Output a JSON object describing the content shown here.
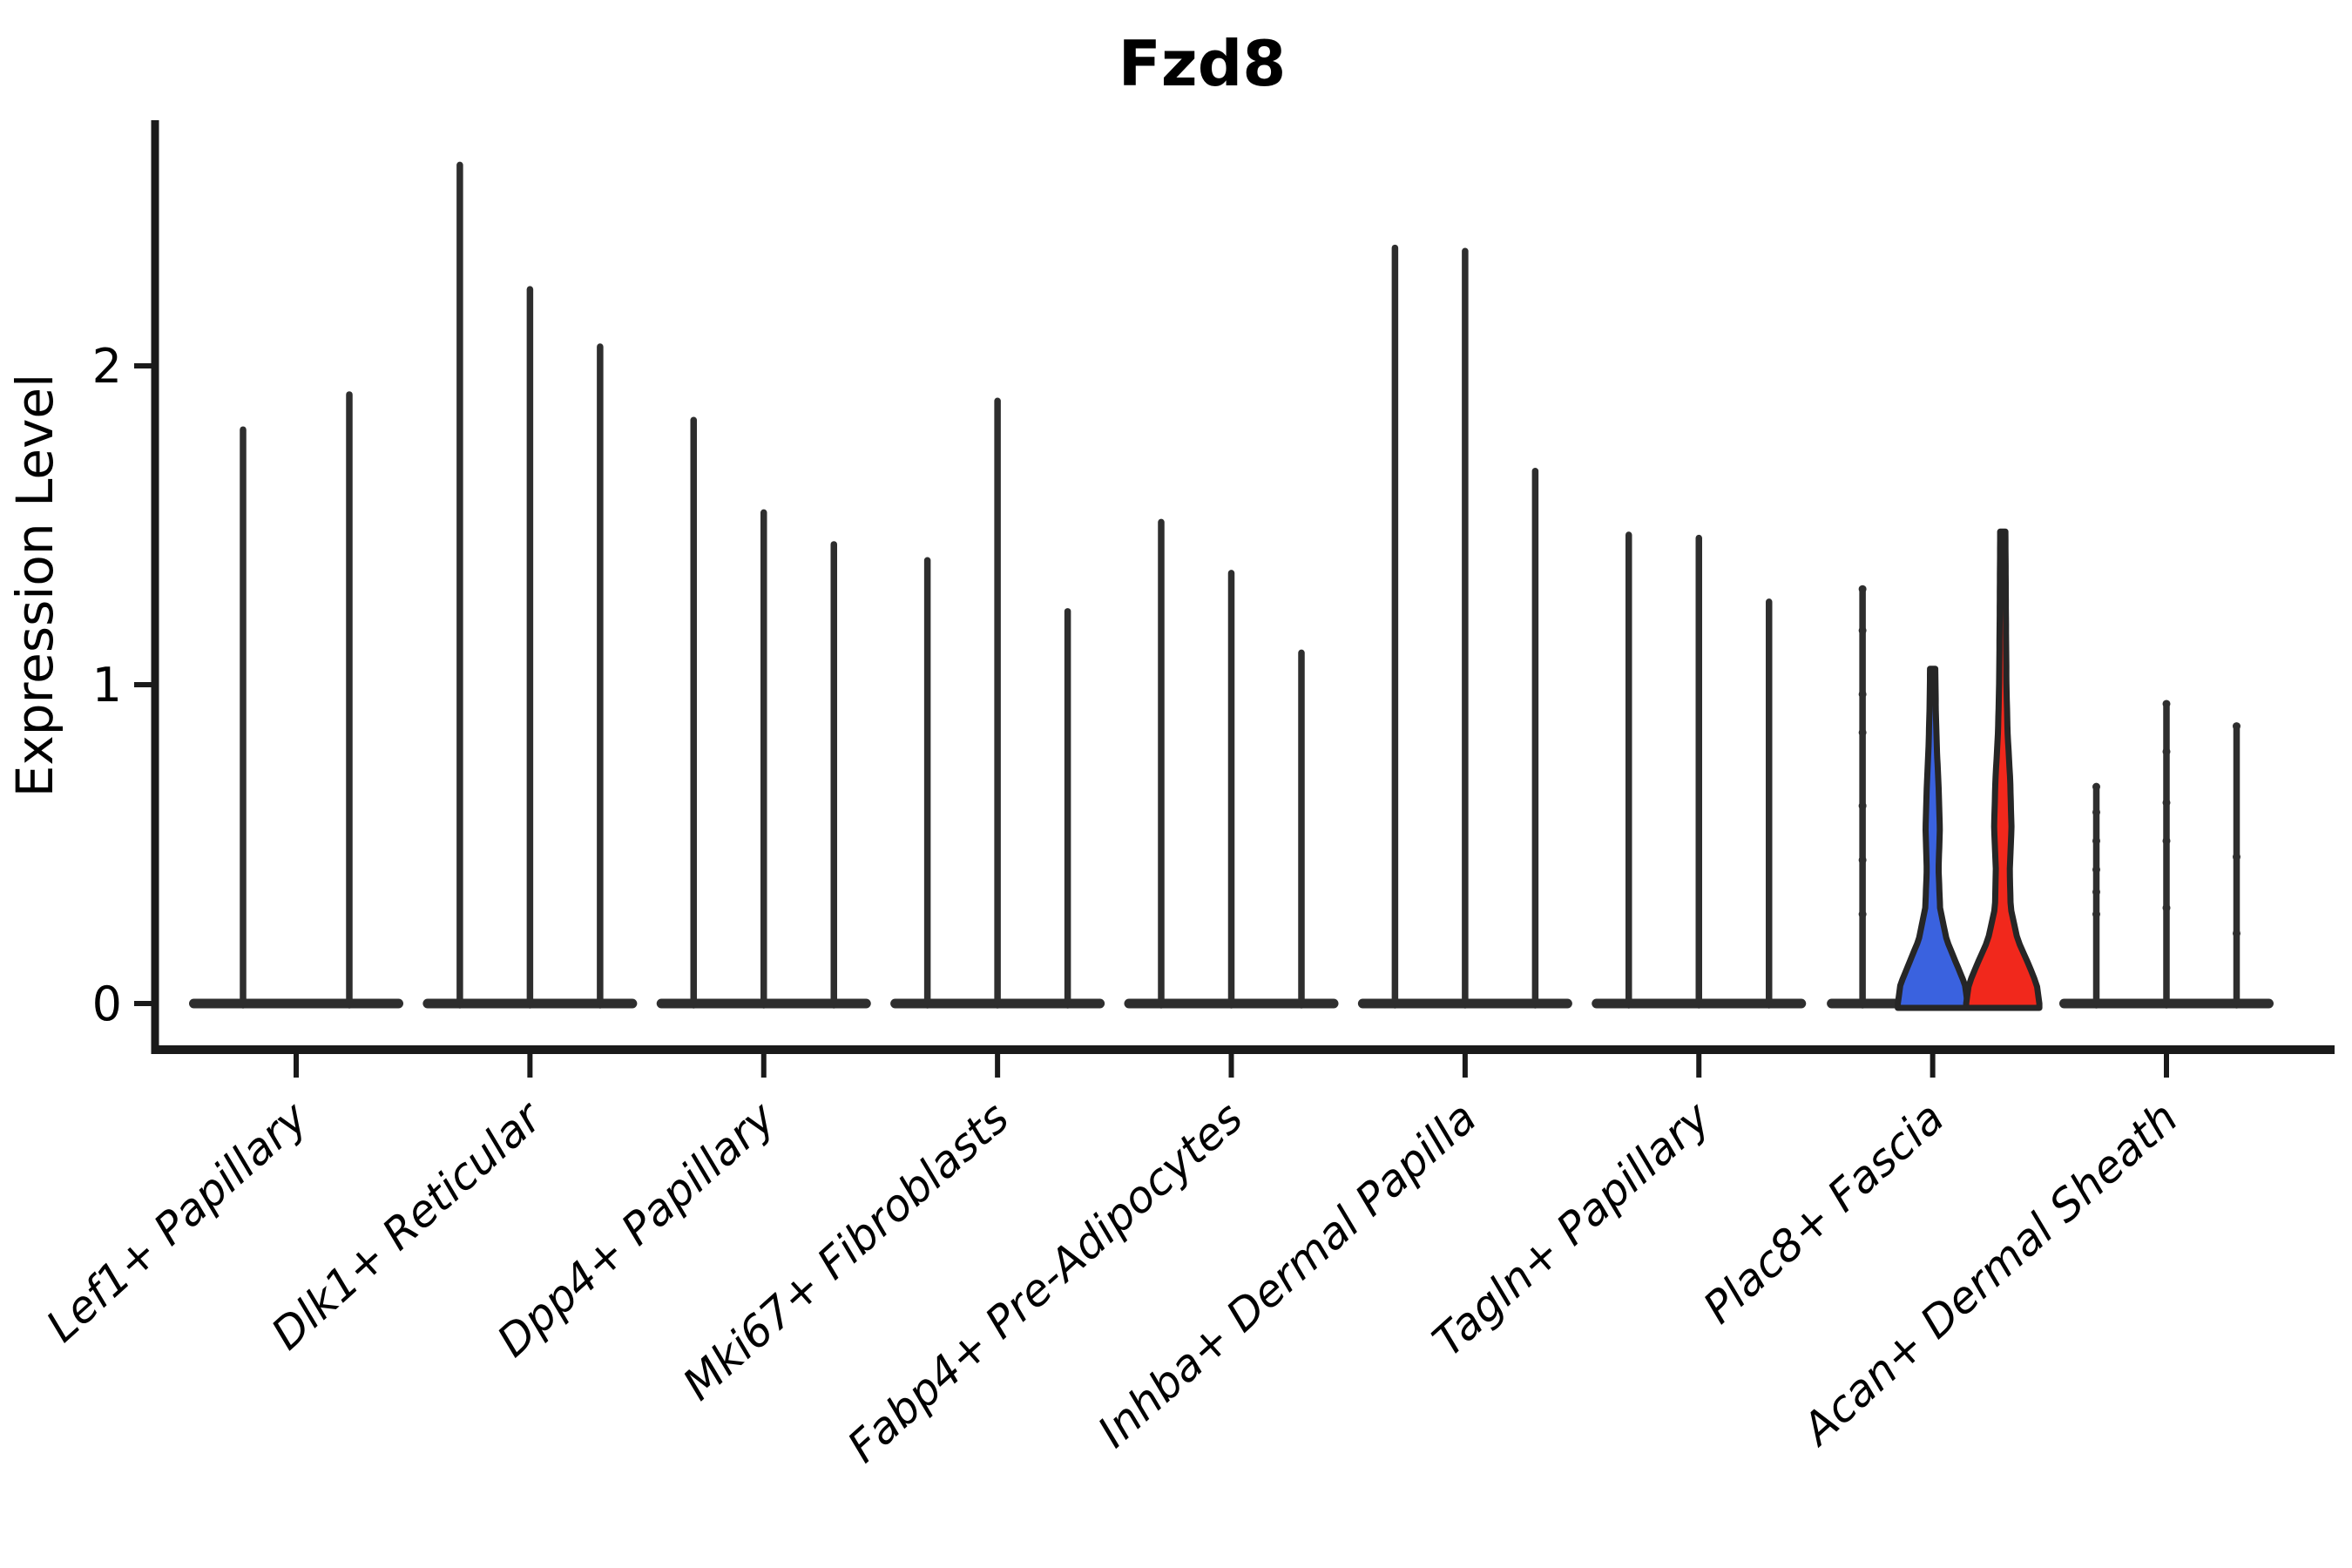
{
  "title": "Fzd8",
  "y_axis": {
    "label": "Expression Level",
    "tick_labels": [
      "0",
      "1",
      "2"
    ],
    "ticks": [
      0,
      1,
      2
    ]
  },
  "colors": {
    "axis": "#1a1a1a",
    "spike": "#2e2e2e",
    "violin_outline": "#262626",
    "blue_fill": "#3A62DF",
    "red_fill": "#F1281C"
  },
  "chart_data": {
    "type": "violin",
    "title": "Fzd8",
    "xlabel": "",
    "ylabel": "Expression Level",
    "ylim": [
      -0.145,
      2.77
    ],
    "yticks": [
      0,
      1,
      2
    ],
    "grid": false,
    "legend": "none",
    "categories": [
      "Lef1+ Papillary",
      "Dlk1+ Reticular",
      "Dpp4+ Papillary",
      "Mki67+ Fibroblasts",
      "Fabp4+ Pre-Adipocytes",
      "Inhba+ Dermal Papilla",
      "Tagln+ Papillary",
      "Plac8+ Fascia",
      "Acan+ Dermal Sheath"
    ],
    "groups": [
      {
        "category": "Lef1+ Papillary",
        "violins": [
          {
            "shape": "spike",
            "max": 1.8
          },
          {
            "shape": "spike",
            "max": 1.91
          }
        ]
      },
      {
        "category": "Dlk1+ Reticular",
        "violins": [
          {
            "shape": "spike",
            "max": 2.63
          },
          {
            "shape": "spike",
            "max": 2.24
          },
          {
            "shape": "spike",
            "max": 2.06
          }
        ]
      },
      {
        "category": "Dpp4+ Papillary",
        "violins": [
          {
            "shape": "spike",
            "max": 1.83
          },
          {
            "shape": "spike",
            "max": 1.54
          },
          {
            "shape": "spike",
            "max": 1.44
          }
        ]
      },
      {
        "category": "Mki67+ Fibroblasts",
        "violins": [
          {
            "shape": "spike",
            "max": 1.39
          },
          {
            "shape": "spike",
            "max": 1.89
          },
          {
            "shape": "spike",
            "max": 1.23
          }
        ]
      },
      {
        "category": "Fabp4+ Pre-Adipocytes",
        "violins": [
          {
            "shape": "spike",
            "max": 1.51
          },
          {
            "shape": "spike",
            "max": 1.35
          },
          {
            "shape": "spike",
            "max": 1.1
          }
        ]
      },
      {
        "category": "Inhba+ Dermal Papilla",
        "violins": [
          {
            "shape": "spike",
            "max": 2.37
          },
          {
            "shape": "spike",
            "max": 2.36
          },
          {
            "shape": "spike",
            "max": 1.67
          }
        ]
      },
      {
        "category": "Tagln+ Papillary",
        "violins": [
          {
            "shape": "spike",
            "max": 1.47
          },
          {
            "shape": "spike",
            "max": 1.46
          },
          {
            "shape": "spike",
            "max": 1.26
          }
        ]
      },
      {
        "category": "Plac8+ Fascia",
        "pancake": "first_only",
        "violins": [
          {
            "shape": "spike",
            "max": 1.3,
            "dots": [
              1.3,
              1.17,
              0.97,
              0.85,
              0.62,
              0.45,
              0.28
            ]
          },
          {
            "shape": "violin",
            "max": 1.05,
            "fill": "blue_fill",
            "profile": [
              [
                0,
                40
              ],
              [
                0.06,
                37
              ],
              [
                0.12,
                28
              ],
              [
                0.2,
                16
              ],
              [
                0.3,
                8.5
              ],
              [
                0.42,
                6.8
              ],
              [
                0.55,
                8.2
              ],
              [
                0.68,
                6.8
              ],
              [
                0.8,
                4.8
              ],
              [
                0.92,
                3.6
              ],
              [
                1.05,
                3
              ]
            ]
          },
          {
            "shape": "violin",
            "max": 1.48,
            "fill": "red_fill",
            "profile": [
              [
                0,
                42
              ],
              [
                0.06,
                39
              ],
              [
                0.12,
                30
              ],
              [
                0.2,
                17
              ],
              [
                0.3,
                9
              ],
              [
                0.42,
                8
              ],
              [
                0.55,
                10
              ],
              [
                0.7,
                8.5
              ],
              [
                0.85,
                5.5
              ],
              [
                1.0,
                4.2
              ],
              [
                1.2,
                3.6
              ],
              [
                1.48,
                3
              ]
            ]
          }
        ]
      },
      {
        "category": "Acan+ Dermal Sheath",
        "violins": [
          {
            "shape": "spike",
            "max": 0.68,
            "dots": [
              0.68,
              0.6,
              0.51,
              0.42,
              0.35,
              0.28
            ]
          },
          {
            "shape": "spike",
            "max": 0.94,
            "dots": [
              0.94,
              0.79,
              0.63,
              0.51,
              0.3
            ]
          },
          {
            "shape": "spike",
            "max": 0.87,
            "dots": [
              0.87,
              0.46,
              0.22
            ]
          }
        ]
      }
    ]
  }
}
